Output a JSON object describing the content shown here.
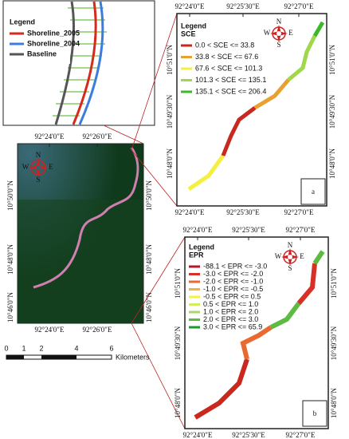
{
  "inset_legend": {
    "title": "Legend",
    "items": [
      {
        "label": "Shoreline_2005",
        "color": "#d62a1e"
      },
      {
        "label": "Shoreline_2004",
        "color": "#3b7ddd"
      },
      {
        "label": "Baseline",
        "color": "#555555"
      }
    ]
  },
  "compass": [
    "N",
    "E",
    "S",
    "W"
  ],
  "overview_map": {
    "x_labels": [
      "92°24'0\"E",
      "92°26'0\"E"
    ],
    "y_labels": [
      "10°50'0\"N",
      "10°48'0\"N",
      "10°46'0\"N"
    ]
  },
  "scale_bar": {
    "ticks": [
      0,
      1,
      2,
      4,
      6
    ],
    "unit": "Kilometers"
  },
  "panel_a": {
    "label": "a",
    "legend_title": "Legend",
    "legend_subtitle": "SCE",
    "x_labels": [
      "92°24'0\"E",
      "92°25'30\"E",
      "92°27'0\"E"
    ],
    "y_labels": [
      "10°51'0\"N",
      "10°49'30\"N",
      "10°48'0\"N"
    ],
    "items": [
      {
        "label": "0.0 < SCE <= 33.8",
        "color": "#c8281e"
      },
      {
        "label": "33.8 < SCE <= 67.6",
        "color": "#e8a030"
      },
      {
        "label": "67.6 < SCE <= 101.3",
        "color": "#f5f040"
      },
      {
        "label": "101.3 < SCE <= 135.1",
        "color": "#9fd84a"
      },
      {
        "label": "135.1 < SCE <= 206.4",
        "color": "#3cb82a"
      }
    ]
  },
  "panel_b": {
    "label": "b",
    "legend_title": "Legend",
    "legend_subtitle": "EPR",
    "x_labels": [
      "92°24'0\"E",
      "92°25'30\"E",
      "92°27'0\"E"
    ],
    "y_labels": [
      "10°51'0\"N",
      "10°49'30\"N",
      "10°48'0\"N"
    ],
    "items": [
      {
        "label": "-88.1 < EPR <= -3.0",
        "color": "#b2182b"
      },
      {
        "label": "-3.0 < EPR <= -2.0",
        "color": "#d73027"
      },
      {
        "label": "-2.0 < EPR <= -1.0",
        "color": "#e86a30"
      },
      {
        "label": "-1.0 < EPR <= -0.5",
        "color": "#f5b040"
      },
      {
        "label": "-0.5 < EPR <= 0.5",
        "color": "#f8f040"
      },
      {
        "label": "0.5 < EPR <= 1.0",
        "color": "#d4ec60"
      },
      {
        "label": "1.0 < EPR <= 2.0",
        "color": "#a6d96a"
      },
      {
        "label": "2.0 < EPR <= 3.0",
        "color": "#5cbb40"
      },
      {
        "label": "3.0 < EPR <= 65.9",
        "color": "#1a9a30"
      }
    ]
  }
}
